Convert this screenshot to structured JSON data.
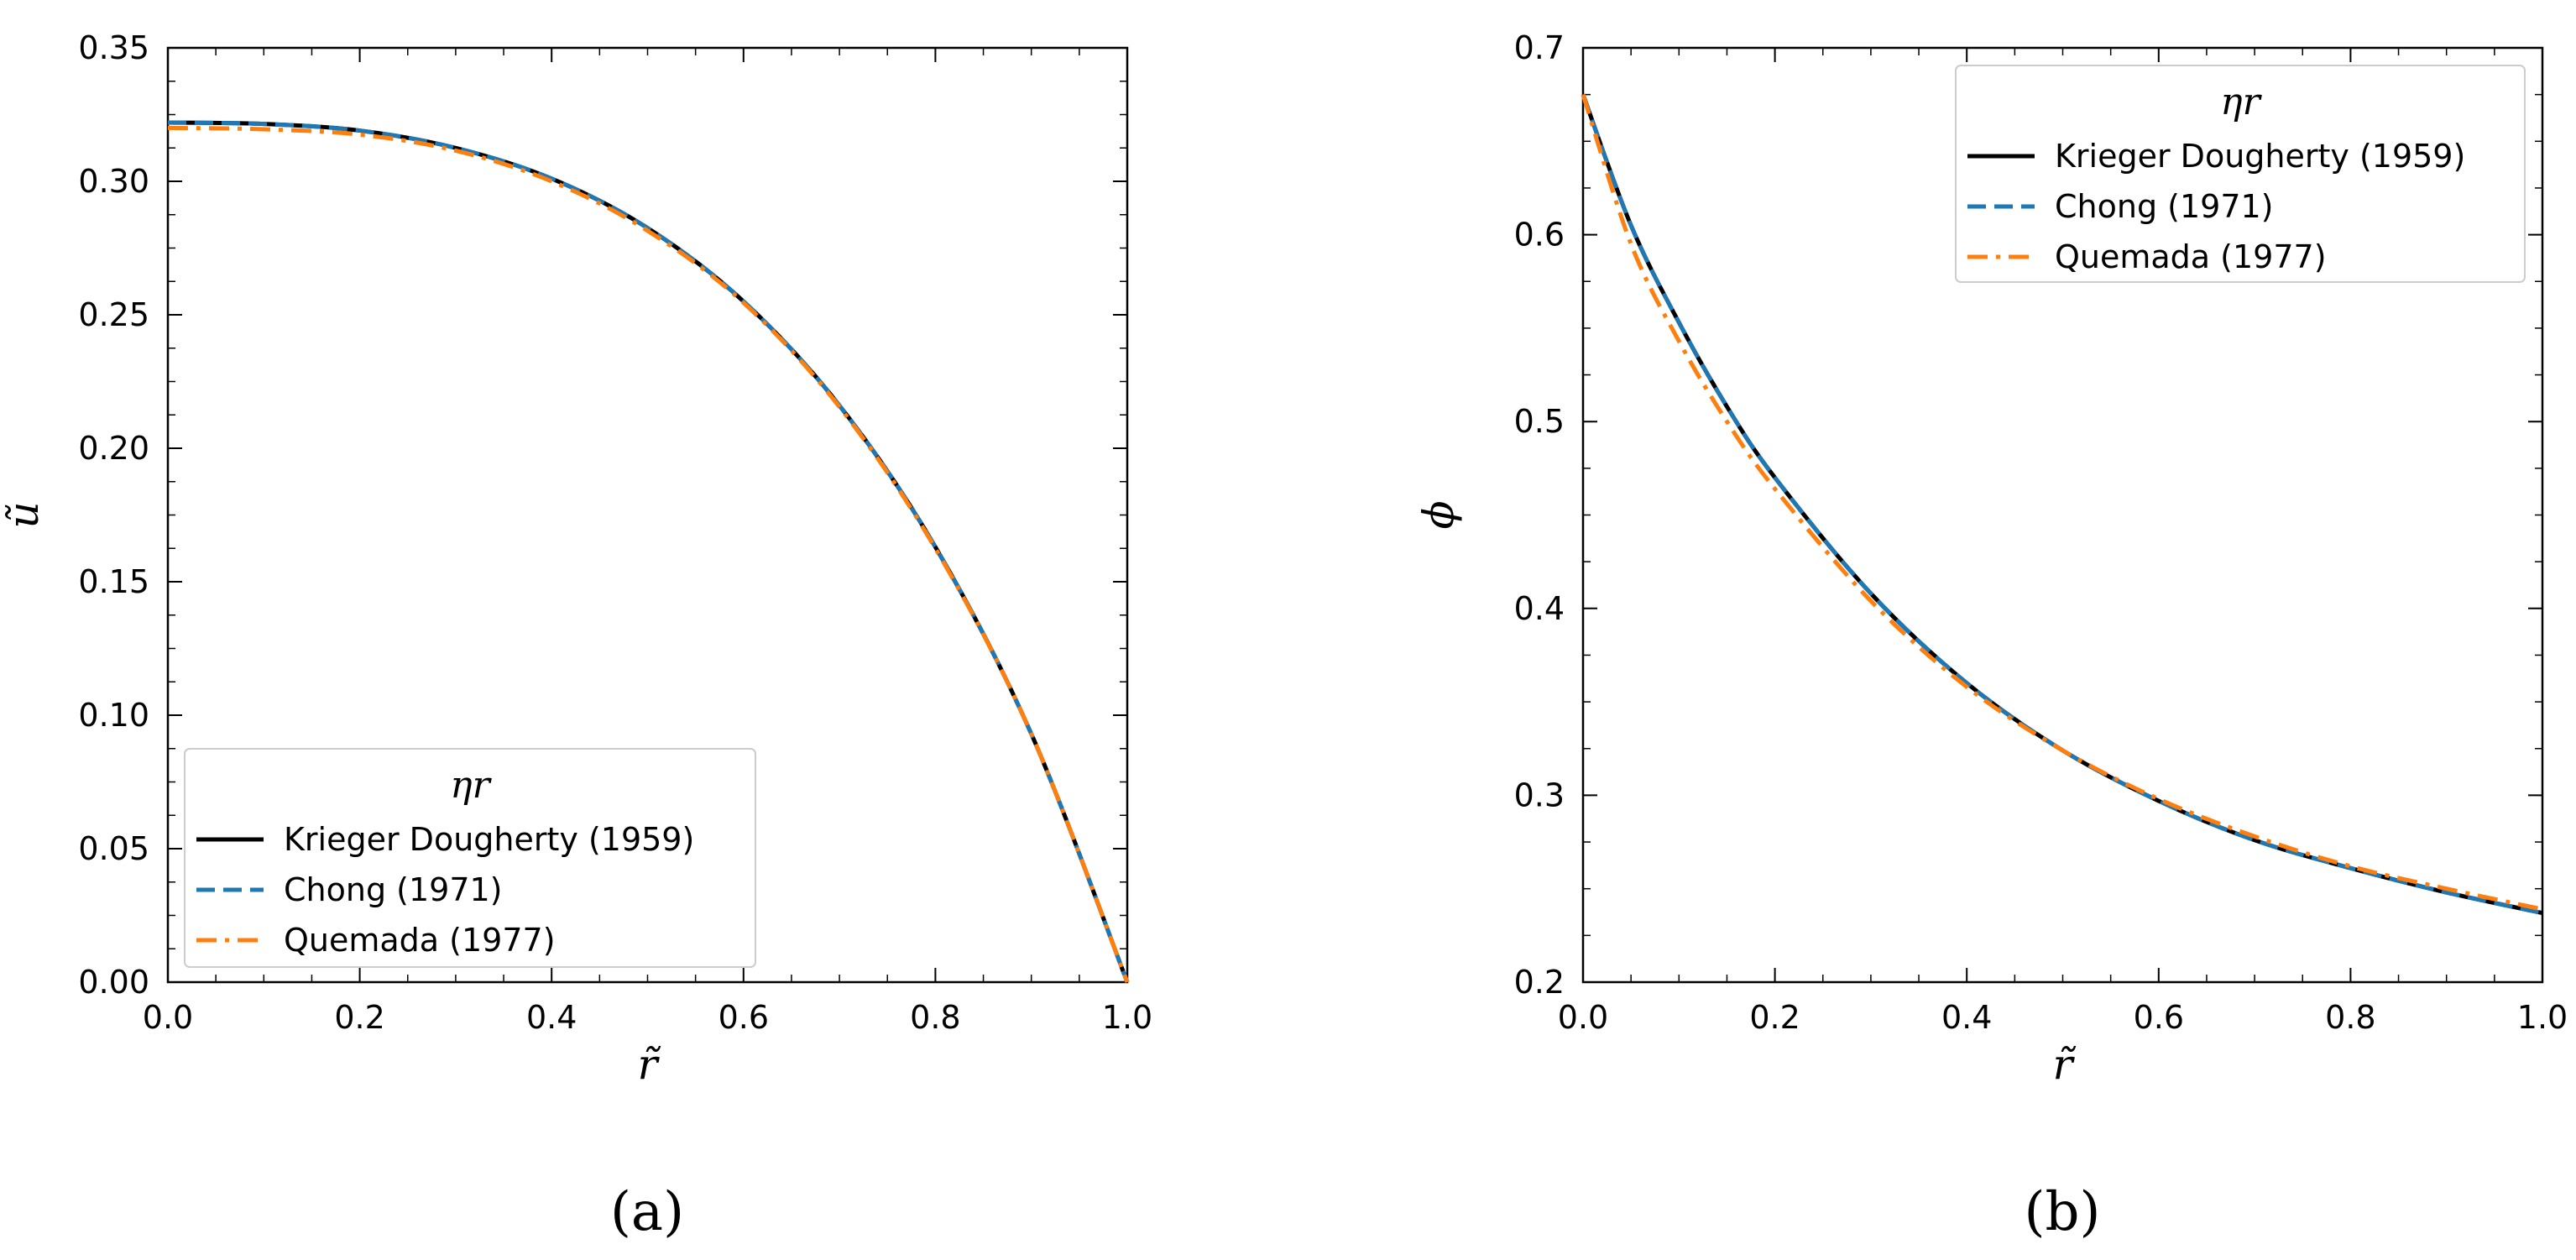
{
  "chart_data": [
    {
      "type": "line",
      "caption": "(a)",
      "xlabel": "r̃",
      "ylabel": "ũ",
      "xlim": [
        0,
        1
      ],
      "ylim": [
        0,
        0.35
      ],
      "xticks": [
        "0.0",
        "0.2",
        "0.4",
        "0.6",
        "0.8",
        "1.0"
      ],
      "yticks": [
        "0.00",
        "0.05",
        "0.10",
        "0.15",
        "0.20",
        "0.25",
        "0.30",
        "0.35"
      ],
      "legend": {
        "title": "ηr",
        "placement": "lower-left"
      },
      "x": [
        0.0,
        0.1,
        0.2,
        0.3,
        0.4,
        0.5,
        0.6,
        0.7,
        0.8,
        0.9,
        1.0
      ],
      "series": [
        {
          "name": "Krieger Dougherty (1959)",
          "color": "#000000",
          "style": "solid",
          "values": [
            0.322,
            0.3215,
            0.319,
            0.3125,
            0.301,
            0.2825,
            0.255,
            0.216,
            0.163,
            0.093,
            0.0
          ]
        },
        {
          "name": "Chong (1971)",
          "color": "#1f77b4",
          "style": "dashed",
          "values": [
            0.322,
            0.3215,
            0.319,
            0.3125,
            0.301,
            0.2825,
            0.255,
            0.216,
            0.163,
            0.093,
            0.0
          ]
        },
        {
          "name": "Quemada (1977)",
          "color": "#ff7f0e",
          "style": "dashdot",
          "values": [
            0.32,
            0.3195,
            0.3175,
            0.3115,
            0.3,
            0.2815,
            0.2545,
            0.2155,
            0.1625,
            0.093,
            0.0
          ]
        }
      ]
    },
    {
      "type": "line",
      "caption": "(b)",
      "xlabel": "r̃",
      "ylabel": "ϕ",
      "xlim": [
        0,
        1
      ],
      "ylim": [
        0.2,
        0.7
      ],
      "xticks": [
        "0.0",
        "0.2",
        "0.4",
        "0.6",
        "0.8",
        "1.0"
      ],
      "yticks": [
        "0.2",
        "0.3",
        "0.4",
        "0.5",
        "0.6",
        "0.7"
      ],
      "legend": {
        "title": "ηr",
        "placement": "upper-right"
      },
      "x": [
        0.0,
        0.05,
        0.1,
        0.15,
        0.2,
        0.3,
        0.4,
        0.5,
        0.6,
        0.7,
        0.8,
        0.9,
        1.0
      ],
      "series": [
        {
          "name": "Krieger Dougherty (1959)",
          "color": "#000000",
          "style": "solid",
          "values": [
            0.675,
            0.605,
            0.553,
            0.508,
            0.47,
            0.408,
            0.36,
            0.324,
            0.297,
            0.276,
            0.261,
            0.248,
            0.237
          ]
        },
        {
          "name": "Chong (1971)",
          "color": "#1f77b4",
          "style": "dashed",
          "values": [
            0.675,
            0.605,
            0.553,
            0.508,
            0.47,
            0.408,
            0.36,
            0.324,
            0.297,
            0.276,
            0.261,
            0.248,
            0.237
          ]
        },
        {
          "name": "Quemada (1977)",
          "color": "#ff7f0e",
          "style": "dashdot",
          "values": [
            0.675,
            0.595,
            0.543,
            0.5,
            0.464,
            0.404,
            0.358,
            0.324,
            0.298,
            0.278,
            0.262,
            0.25,
            0.239
          ]
        }
      ]
    }
  ]
}
